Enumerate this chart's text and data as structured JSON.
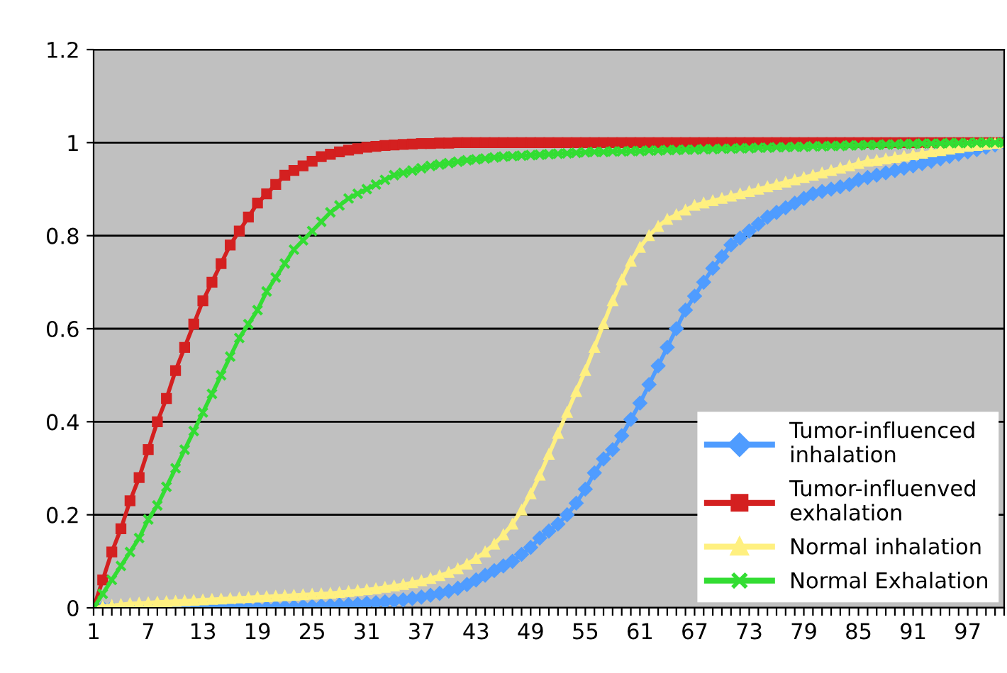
{
  "chart_data": {
    "type": "line",
    "categories": [
      "1",
      null,
      null,
      null,
      null,
      null,
      "7",
      null,
      null,
      null,
      null,
      null,
      "13",
      null,
      null,
      null,
      null,
      null,
      "19",
      null,
      null,
      null,
      null,
      null,
      "25",
      null,
      null,
      null,
      null,
      null,
      "31",
      null,
      null,
      null,
      null,
      null,
      "37",
      null,
      null,
      null,
      null,
      null,
      "43",
      null,
      null,
      null,
      null,
      null,
      "49",
      null,
      null,
      null,
      null,
      null,
      "55",
      null,
      null,
      null,
      null,
      null,
      "61",
      null,
      null,
      null,
      null,
      null,
      "67",
      null,
      null,
      null,
      null,
      null,
      "73",
      null,
      null,
      null,
      null,
      null,
      "79",
      null,
      null,
      null,
      null,
      null,
      "85",
      null,
      null,
      null,
      null,
      null,
      "91",
      null,
      null,
      null,
      null,
      null,
      "97",
      null,
      null,
      null,
      null
    ],
    "series": [
      {
        "name": "Tumor-influenced\ninhalation",
        "color": "#4f9cff",
        "marker": "diamond",
        "values": [
          0,
          0,
          0,
          0,
          0,
          0,
          0,
          0,
          0,
          0,
          0,
          0,
          0,
          0,
          0,
          0,
          0,
          0,
          0,
          0,
          0.001,
          0.002,
          0.002,
          0.003,
          0.003,
          0.004,
          0.005,
          0.006,
          0.007,
          0.008,
          0.01,
          0.011,
          0.013,
          0.015,
          0.017,
          0.02,
          0.023,
          0.027,
          0.031,
          0.036,
          0.042,
          0.05,
          0.06,
          0.07,
          0.08,
          0.09,
          0.1,
          0.115,
          0.13,
          0.15,
          0.165,
          0.18,
          0.2,
          0.225,
          0.255,
          0.29,
          0.32,
          0.34,
          0.37,
          0.405,
          0.44,
          0.48,
          0.52,
          0.56,
          0.6,
          0.64,
          0.67,
          0.7,
          0.73,
          0.755,
          0.78,
          0.795,
          0.81,
          0.825,
          0.84,
          0.85,
          0.86,
          0.87,
          0.88,
          0.89,
          0.895,
          0.9,
          0.905,
          0.91,
          0.92,
          0.925,
          0.93,
          0.935,
          0.94,
          0.945,
          0.95,
          0.955,
          0.96,
          0.965,
          0.97,
          0.975,
          0.98,
          0.985,
          0.99,
          0.995,
          1.0
        ]
      },
      {
        "name": "Tumor-influenved\nexhalation",
        "color": "#d42020",
        "marker": "square",
        "values": [
          0,
          0.06,
          0.12,
          0.17,
          0.23,
          0.28,
          0.34,
          0.4,
          0.45,
          0.51,
          0.56,
          0.61,
          0.66,
          0.7,
          0.74,
          0.78,
          0.81,
          0.84,
          0.87,
          0.89,
          0.91,
          0.93,
          0.94,
          0.95,
          0.96,
          0.97,
          0.975,
          0.98,
          0.984,
          0.987,
          0.99,
          0.992,
          0.994,
          0.995,
          0.996,
          0.997,
          0.998,
          0.998,
          0.999,
          0.999,
          1.0,
          1.0,
          1.0,
          1.0,
          1.0,
          1.0,
          1.0,
          1.0,
          1.0,
          1.0,
          1.0,
          1.0,
          1.0,
          1.0,
          1.0,
          1.0,
          1.0,
          1.0,
          1.0,
          1.0,
          1.0,
          1.0,
          1.0,
          1.0,
          1.0,
          1.0,
          1.0,
          1.0,
          1.0,
          1.0,
          1.0,
          1.0,
          1.0,
          1.0,
          1.0,
          1.0,
          1.0,
          1.0,
          1.0,
          1.0,
          1.0,
          1.0,
          1.0,
          1.0,
          1.0,
          1.0,
          1.0,
          1.0,
          1.0,
          1.0,
          1.0,
          1.0,
          1.0,
          1.0,
          1.0,
          1.0,
          1.0,
          1.0,
          1.0,
          1.0,
          1.0
        ]
      },
      {
        "name": "Normal inhalation",
        "color": "#fff080",
        "marker": "triangle",
        "values": [
          0,
          0.003,
          0.005,
          0.007,
          0.009,
          0.01,
          0.011,
          0.012,
          0.013,
          0.014,
          0.015,
          0.016,
          0.017,
          0.018,
          0.019,
          0.02,
          0.021,
          0.022,
          0.023,
          0.024,
          0.025,
          0.026,
          0.027,
          0.028,
          0.029,
          0.03,
          0.031,
          0.033,
          0.035,
          0.037,
          0.039,
          0.041,
          0.044,
          0.047,
          0.05,
          0.054,
          0.058,
          0.063,
          0.069,
          0.076,
          0.084,
          0.094,
          0.106,
          0.12,
          0.137,
          0.157,
          0.18,
          0.21,
          0.245,
          0.285,
          0.33,
          0.375,
          0.42,
          0.465,
          0.51,
          0.56,
          0.61,
          0.66,
          0.705,
          0.745,
          0.775,
          0.8,
          0.82,
          0.835,
          0.845,
          0.855,
          0.865,
          0.87,
          0.875,
          0.88,
          0.885,
          0.89,
          0.895,
          0.9,
          0.905,
          0.91,
          0.915,
          0.92,
          0.925,
          0.93,
          0.935,
          0.94,
          0.945,
          0.95,
          0.955,
          0.96,
          0.962,
          0.965,
          0.968,
          0.971,
          0.974,
          0.977,
          0.98,
          0.983,
          0.986,
          0.989,
          0.992,
          0.994,
          0.996,
          0.998,
          1.0
        ]
      },
      {
        "name": "Normal Exhalation",
        "color": "#33dd33",
        "marker": "cross",
        "values": [
          0,
          0.03,
          0.06,
          0.09,
          0.12,
          0.15,
          0.19,
          0.22,
          0.26,
          0.3,
          0.34,
          0.38,
          0.42,
          0.46,
          0.5,
          0.54,
          0.58,
          0.61,
          0.64,
          0.68,
          0.71,
          0.74,
          0.77,
          0.79,
          0.81,
          0.83,
          0.85,
          0.865,
          0.88,
          0.89,
          0.9,
          0.91,
          0.92,
          0.93,
          0.935,
          0.94,
          0.945,
          0.95,
          0.953,
          0.956,
          0.959,
          0.962,
          0.964,
          0.966,
          0.968,
          0.97,
          0.971,
          0.972,
          0.973,
          0.974,
          0.975,
          0.976,
          0.977,
          0.978,
          0.979,
          0.98,
          0.98,
          0.981,
          0.981,
          0.982,
          0.982,
          0.983,
          0.983,
          0.984,
          0.984,
          0.985,
          0.985,
          0.986,
          0.986,
          0.987,
          0.987,
          0.988,
          0.988,
          0.989,
          0.989,
          0.99,
          0.99,
          0.991,
          0.991,
          0.992,
          0.992,
          0.993,
          0.993,
          0.994,
          0.994,
          0.995,
          0.995,
          0.996,
          0.996,
          0.997,
          0.997,
          0.998,
          0.998,
          0.998,
          0.999,
          0.999,
          0.999,
          1.0,
          1.0,
          1.0,
          1.0
        ]
      }
    ],
    "ylim": [
      0,
      1.2
    ],
    "yticks": [
      0,
      0.2,
      0.4,
      0.6,
      0.8,
      1,
      1.2
    ],
    "grid": "y",
    "legend": "lower right",
    "line_style": "solid"
  }
}
